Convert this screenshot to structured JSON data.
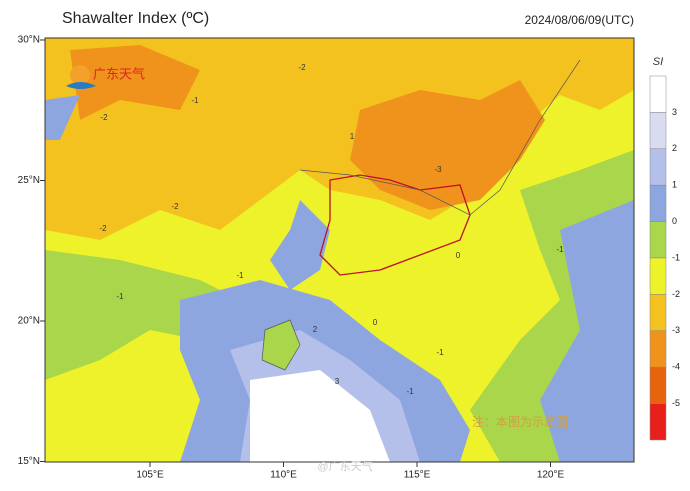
{
  "header": {
    "title": "Shawalter Index (ºC)",
    "time": "2024/08/06/09(UTC)"
  },
  "logo": {
    "text": "广东天气"
  },
  "map": {
    "lat_labels": [
      "30°N",
      "25°N",
      "20°N",
      "15°N"
    ],
    "lon_labels": [
      "105°E",
      "110°E",
      "115°E",
      "120°E"
    ],
    "contour_labels": [
      "-2",
      "-2",
      "-1",
      "-3",
      "-2",
      "-1",
      "0",
      "-1",
      "1",
      "-2",
      "-1",
      "-1",
      "2",
      "3",
      "0",
      "-1"
    ],
    "note": "注：本图为示意图",
    "watermark": "@广东天气"
  },
  "colorbar": {
    "label": "SI",
    "ticks": [
      "3",
      "2",
      "1",
      "0",
      "-1",
      "-2",
      "-3",
      "-4",
      "-5"
    ],
    "colors": [
      "#ffffff",
      "#d9dcf1",
      "#b5c0ea",
      "#8da6e0",
      "#a9d64b",
      "#eef22a",
      "#f3c21f",
      "#f0931d",
      "#e7640f",
      "#e8201c"
    ]
  }
}
